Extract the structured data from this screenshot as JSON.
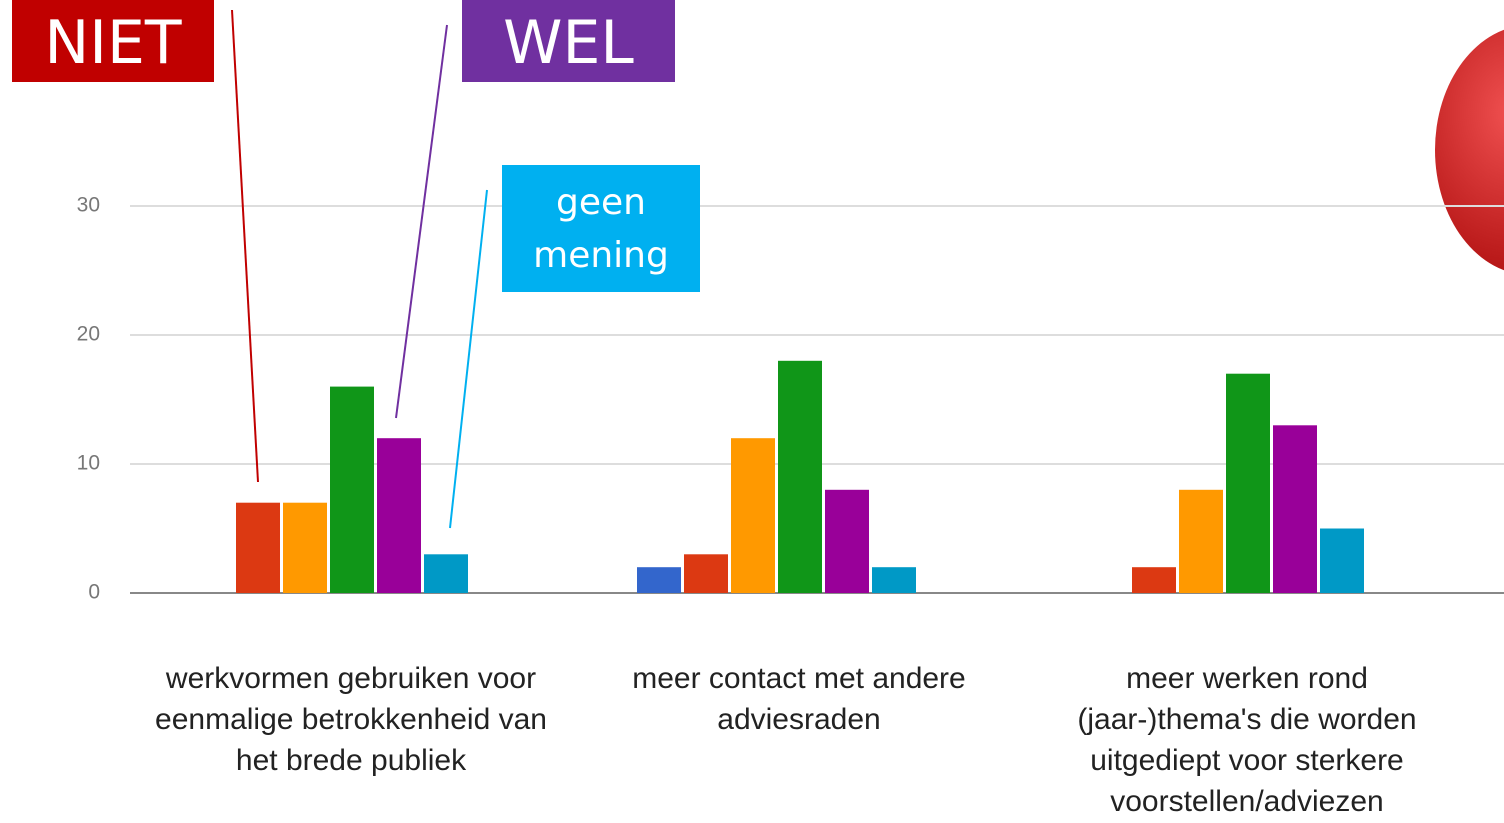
{
  "chart_data": {
    "type": "bar",
    "categories": [
      "werkvormen gebruiken voor eenmalige betrokkenheid van het brede publiek",
      "meer contact met andere adviesraden",
      "meer werken rond (jaar-)thema's die worden uitgediept voor sterkere voorstellen/adviezen"
    ],
    "series": [
      {
        "color": "#3366cc",
        "values": [
          0,
          2,
          0
        ]
      },
      {
        "color": "#dc3912",
        "values": [
          7,
          3,
          2
        ]
      },
      {
        "color": "#ff9900",
        "values": [
          7,
          12,
          8
        ]
      },
      {
        "color": "#109618",
        "values": [
          16,
          18,
          17
        ]
      },
      {
        "color": "#990099",
        "values": [
          12,
          8,
          13
        ]
      },
      {
        "color": "#0099c6",
        "values": [
          3,
          2,
          5
        ]
      }
    ],
    "ylim": [
      0,
      30
    ],
    "yticks": [
      0,
      10,
      20,
      30
    ],
    "grid": true,
    "annotations": [
      {
        "text": "NIET",
        "color": "#c00000"
      },
      {
        "text": "WEL",
        "color": "#7030a0"
      },
      {
        "text": "geen mening",
        "color": "#00b0f0"
      }
    ]
  }
}
